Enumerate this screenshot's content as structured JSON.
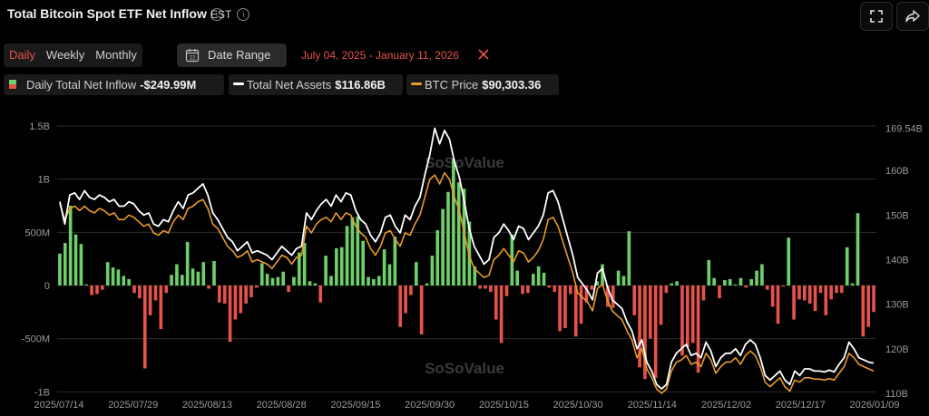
{
  "header": {
    "title": "Total Bitcoin Spot ETF Net Inflow",
    "timezone": "EST"
  },
  "tabs": [
    "Daily",
    "Weekly",
    "Monthly"
  ],
  "active_tab": "Daily",
  "date_range": {
    "label": "Date Range",
    "calendar_day": "12",
    "value": "July 04, 2025 - January 11, 2026"
  },
  "legend": [
    {
      "label": "Daily Total Net Inflow",
      "value": "-$249.99M"
    },
    {
      "label": "Total Net Assets",
      "value": "$116.86B"
    },
    {
      "label": "BTC Price",
      "value": "$90,303.36"
    }
  ],
  "colors": {
    "positive": "#6fcf6a",
    "negative": "#e5534b",
    "assets": "#ffffff",
    "price": "#e89a2c",
    "active": "#e5534b"
  },
  "watermark": "SoSoValue",
  "chart_data": {
    "type": "bar",
    "title": "Total Bitcoin Spot ETF Net Inflow",
    "grid": true,
    "y_left": {
      "range": [
        -1000,
        1500
      ],
      "unit": "M",
      "ticks": [
        "1.5B",
        "1B",
        "500M",
        "0",
        "-500M",
        "-1B"
      ]
    },
    "y_right": {
      "range": [
        110,
        170
      ],
      "ticks": [
        "169.54B",
        "160B",
        "150B",
        "140B",
        "130B",
        "120B",
        "110B"
      ]
    },
    "x_ticks": [
      "2025/07/14",
      "2025/07/29",
      "2025/08/13",
      "2025/08/28",
      "2025/09/15",
      "2025/09/30",
      "2025/10/15",
      "2025/10/30",
      "2025/11/14",
      "2025/12/02",
      "2025/12/17",
      "2026/01/09"
    ],
    "series": [
      {
        "name": "Daily Total Net Inflow",
        "type": "bar",
        "values": [
          300,
          400,
          750,
          480,
          390,
          10,
          -90,
          -80,
          -40,
          220,
          170,
          150,
          90,
          60,
          -70,
          -120,
          -780,
          -280,
          -140,
          -410,
          -70,
          100,
          200,
          100,
          410,
          160,
          130,
          220,
          -30,
          230,
          -160,
          -170,
          -530,
          -320,
          -260,
          -170,
          -110,
          -20,
          210,
          110,
          70,
          80,
          130,
          -60,
          80,
          310,
          400,
          40,
          20,
          -160,
          280,
          90,
          350,
          360,
          560,
          640,
          650,
          420,
          80,
          60,
          90,
          340,
          200,
          460,
          -390,
          -260,
          -90,
          220,
          -460,
          20,
          280,
          520,
          720,
          880,
          1190,
          970,
          910,
          600,
          180,
          -30,
          -30,
          -60,
          -320,
          -540,
          -100,
          480,
          140,
          -80,
          -70,
          110,
          180,
          120,
          -20,
          -60,
          -430,
          -400,
          -80,
          -480,
          -360,
          -160,
          -40,
          40,
          200,
          -200,
          -210,
          140,
          90,
          510,
          -280,
          -770,
          -880,
          -500,
          -870,
          -370,
          -70,
          20,
          40,
          -660,
          -580,
          -540,
          -820,
          -140,
          240,
          70,
          -120,
          50,
          60,
          10,
          70,
          -20,
          60,
          140,
          200,
          -40,
          -200,
          -360,
          -10,
          450,
          -320,
          -130,
          -140,
          -170,
          -240,
          -70,
          -280,
          -130,
          -70,
          -70,
          360,
          20,
          680,
          -480,
          -390,
          -250
        ]
      },
      {
        "name": "Total Net Assets",
        "type": "line",
        "values": [
          153,
          148,
          154.5,
          155,
          153.5,
          155.5,
          154,
          153.5,
          154.5,
          154,
          153,
          153.5,
          152,
          152,
          153,
          152.5,
          151,
          150,
          150.5,
          148,
          147.5,
          149,
          148.5,
          151,
          153,
          151.5,
          154.5,
          155,
          156,
          157,
          154.5,
          150.5,
          149,
          147,
          145,
          144,
          142,
          143,
          144,
          141.5,
          142,
          141.5,
          141,
          140,
          141.5,
          143,
          142,
          141,
          142.5,
          143,
          150.5,
          149,
          151,
          152.5,
          153.5,
          152,
          154.5,
          153,
          155,
          154.5,
          151,
          149,
          148,
          145.5,
          144,
          146,
          149.5,
          150,
          147.5,
          146,
          150,
          149,
          152,
          154,
          159,
          163.5,
          169.5,
          166,
          169,
          167,
          162,
          158.5,
          153,
          147,
          143,
          141,
          139,
          140,
          145,
          146,
          148,
          146.5,
          144.5,
          147.5,
          147,
          144.5,
          146,
          147.5,
          150,
          155,
          155.5,
          153,
          149,
          145,
          141,
          136,
          134.5,
          133,
          131,
          137,
          138,
          134,
          131,
          130,
          129,
          126,
          124,
          120,
          122,
          117,
          115,
          112,
          111,
          112,
          117,
          119,
          120,
          121,
          118.5,
          119,
          118,
          121.5,
          119.5,
          116,
          118,
          119,
          119,
          120,
          118.5,
          121,
          122,
          121,
          118,
          114,
          113,
          114,
          115,
          113,
          112,
          115,
          114,
          115.5,
          115.5,
          115,
          115,
          114.8,
          115.2,
          114.8,
          116.5,
          118,
          121.5,
          120,
          118,
          117.5,
          117,
          116.8
        ]
      },
      {
        "name": "BTC Price",
        "type": "line",
        "values": [
          152.5,
          149,
          151.5,
          152,
          151,
          152,
          151,
          150.5,
          151.5,
          151,
          150,
          150.5,
          149,
          149,
          150,
          149.5,
          148.5,
          147.5,
          148,
          146,
          145.5,
          146.5,
          146,
          148.5,
          150,
          149,
          151.5,
          152,
          153,
          153.5,
          151.5,
          148,
          147,
          145,
          143,
          142,
          140.5,
          141,
          142,
          139.5,
          140,
          139.5,
          139,
          138,
          139.5,
          141,
          140.5,
          139,
          140.5,
          141,
          147.5,
          146,
          148,
          149,
          149.5,
          148.5,
          150.5,
          149,
          150.5,
          150,
          147.5,
          146,
          145,
          142.5,
          141,
          143,
          146,
          146.5,
          144.5,
          143,
          146,
          145.5,
          148,
          150,
          154,
          158,
          159,
          157,
          159.5,
          158,
          154,
          151,
          146,
          141,
          138,
          137,
          136,
          136.5,
          140,
          141,
          142.5,
          141,
          139.5,
          142,
          141.5,
          139.5,
          140.5,
          142,
          144.5,
          149,
          149.5,
          147.5,
          144,
          140.5,
          137,
          132.5,
          131.5,
          130.5,
          128.5,
          133.5,
          134.5,
          131,
          128.5,
          127.5,
          126.5,
          124,
          122,
          118,
          120,
          115.5,
          113.5,
          111,
          110,
          111,
          115,
          117,
          117.5,
          118.5,
          116.5,
          117,
          116,
          119,
          117.5,
          114.5,
          116,
          117,
          117,
          118,
          116.5,
          118.5,
          119.5,
          118.5,
          116,
          112.5,
          111.5,
          112.5,
          113.5,
          111.5,
          110.5,
          113,
          112.5,
          113.5,
          113.5,
          113.2,
          113.2,
          113,
          113.3,
          113,
          114.5,
          116,
          119,
          118,
          116.5,
          116,
          115.5,
          115
        ]
      }
    ]
  }
}
